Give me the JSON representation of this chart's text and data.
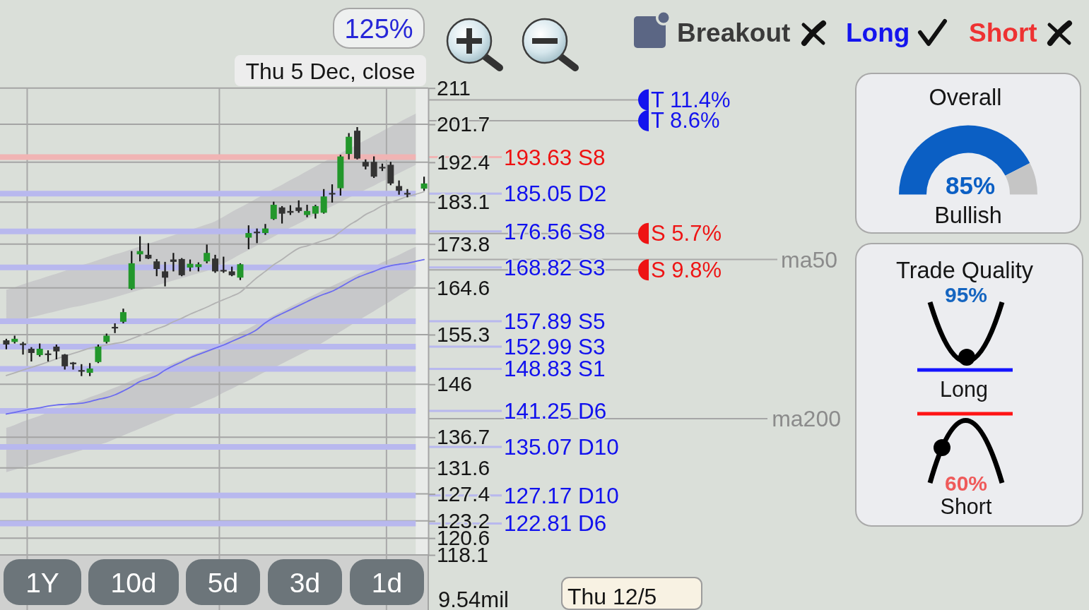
{
  "chart_data": [
    {
      "type": "candlestick",
      "categories": [
        null,
        null,
        null,
        null,
        null,
        null,
        null,
        null,
        null,
        null,
        null,
        null,
        null,
        null,
        null,
        null,
        null,
        null,
        null,
        null,
        null,
        null,
        null,
        null,
        null,
        null,
        null,
        null,
        null,
        null,
        null,
        null,
        null,
        null,
        null,
        null,
        null,
        null,
        null,
        null,
        null,
        null,
        null,
        null,
        null,
        null,
        null,
        null,
        null,
        null,
        null
      ],
      "ohlc": [
        [
          154.2,
          154.5,
          152.5,
          153.4
        ],
        [
          153.9,
          155.1,
          153.6,
          154.5
        ],
        [
          153.6,
          153.9,
          151.5,
          153.3
        ],
        [
          152.6,
          152.9,
          150.2,
          151.8
        ],
        [
          151.4,
          153.6,
          151.1,
          152.6
        ],
        [
          151.7,
          152.3,
          150.2,
          151.5
        ],
        [
          153.0,
          153.4,
          150.6,
          152.1
        ],
        [
          151.5,
          151.6,
          148.7,
          149.3
        ],
        [
          150.0,
          150.1,
          148.7,
          149.7
        ],
        [
          148.6,
          149.7,
          147.5,
          148.4
        ],
        [
          148.1,
          149.9,
          147.5,
          148.9
        ],
        [
          150.1,
          153.4,
          149.9,
          153.0
        ],
        [
          153.9,
          155.5,
          153.6,
          155.1
        ],
        [
          156.8,
          157.5,
          155.6,
          156.5
        ],
        [
          157.8,
          160.4,
          157.5,
          159.7
        ],
        [
          164.4,
          172.3,
          164.2,
          169.7
        ],
        [
          171.6,
          175.5,
          170.1,
          172.3
        ],
        [
          171.5,
          174.0,
          170.6,
          170.7
        ],
        [
          170.1,
          170.6,
          167.0,
          168.5
        ],
        [
          168.0,
          170.0,
          164.9,
          166.7
        ],
        [
          170.5,
          171.9,
          168.0,
          170.0
        ],
        [
          170.6,
          170.8,
          167.0,
          167.2
        ],
        [
          168.8,
          170.5,
          168.0,
          169.6
        ],
        [
          168.9,
          169.9,
          168.0,
          169.5
        ],
        [
          170.1,
          173.7,
          169.7,
          171.9
        ],
        [
          170.7,
          171.5,
          167.7,
          168.0
        ],
        [
          168.3,
          171.1,
          167.7,
          168.0
        ],
        [
          168.0,
          169.0,
          167.0,
          167.2
        ],
        [
          166.7,
          169.7,
          166.2,
          169.5
        ],
        [
          175.2,
          177.9,
          172.7,
          176.2
        ],
        [
          176.5,
          177.2,
          174.0,
          176.2
        ],
        [
          176.2,
          178.2,
          175.8,
          177.2
        ],
        [
          179.3,
          183.2,
          179.1,
          182.5
        ],
        [
          181.9,
          182.2,
          178.3,
          180.5
        ],
        [
          181.1,
          182.4,
          180.2,
          180.7
        ],
        [
          181.9,
          183.5,
          180.7,
          181.1
        ],
        [
          180.2,
          182.5,
          179.7,
          181.1
        ],
        [
          180.5,
          182.5,
          179.4,
          182.2
        ],
        [
          180.7,
          186.1,
          180.5,
          184.4
        ],
        [
          185.2,
          187.2,
          183.0,
          184.9
        ],
        [
          186.3,
          194.2,
          184.6,
          193.8
        ],
        [
          194.4,
          199.5,
          193.1,
          198.6
        ],
        [
          200.1,
          201.0,
          193.1,
          193.3
        ],
        [
          192.5,
          193.1,
          190.7,
          191.4
        ],
        [
          192.5,
          193.8,
          188.7,
          189.0
        ],
        [
          191.3,
          192.1,
          190.3,
          191.1
        ],
        [
          191.8,
          192.5,
          187.0,
          187.4
        ],
        [
          186.8,
          188.1,
          184.8,
          185.7
        ],
        [
          185.2,
          186.1,
          184.2,
          184.9
        ],
        null,
        [
          186.2,
          189.0,
          185.7,
          187.4
        ]
      ],
      "colors": [
        "#333333",
        "#22972b",
        "#333333",
        "#333333",
        "#22972b",
        "#333333",
        "#333333",
        "#333333",
        "#333333",
        "#333333",
        "#22972b",
        "#22972b",
        "#22972b",
        "#333333",
        "#22972b",
        "#22972b",
        "#22972b",
        "#333333",
        "#333333",
        "#333333",
        "#333333",
        "#333333",
        "#22972b",
        "#22972b",
        "#22972b",
        "#333333",
        "#333333",
        "#333333",
        "#22972b",
        "#22972b",
        "#333333",
        "#22972b",
        "#22972b",
        "#333333",
        "#333333",
        "#333333",
        "#22972b",
        "#22972b",
        "#22972b",
        "#333333",
        "#22972b",
        "#22972b",
        "#333333",
        "#333333",
        "#333333",
        "#333333",
        "#333333",
        "#333333",
        "#333333",
        null,
        "#22972b"
      ],
      "ylim": [
        118.1,
        211
      ],
      "log": true,
      "yticks": [
        211,
        201.7,
        192.4,
        183.1,
        173.8,
        164.6,
        155.3,
        146,
        136.7,
        131.6,
        127.4,
        123.2,
        120.6,
        118.1
      ],
      "grid": "y",
      "series": [
        {
          "type": "line",
          "color": "#c9cacb",
          "values": [
            null,
            null,
            null,
            null,
            null,
            null,
            null,
            null,
            null,
            null,
            null,
            null,
            null,
            null,
            null,
            null,
            null,
            null,
            null,
            null,
            null,
            null,
            null,
            null,
            null,
            null,
            null,
            null,
            null,
            null,
            null,
            null,
            null,
            null,
            null,
            null,
            null,
            null,
            null,
            null,
            null,
            null,
            null,
            null,
            null,
            null,
            null,
            null,
            null,
            null,
            null
          ],
          "lower": [
            157.6,
            158.0,
            158.3,
            158.7,
            159.1,
            159.5,
            159.9,
            160.3,
            160.7,
            161.0,
            161.4,
            161.8,
            162.2,
            162.7,
            163.2,
            163.7,
            164.2,
            164.6,
            165.1,
            165.6,
            166.1,
            166.6,
            167.1,
            167.6,
            168.1,
            168.8,
            169.7,
            170.6,
            171.6,
            172.5,
            173.5,
            174.4,
            175.4,
            176.4,
            177.4,
            178.3,
            179.3,
            180.3,
            181.3,
            182.2,
            183.1,
            184.1,
            185.0,
            186.0,
            186.9,
            187.9,
            188.8,
            189.8,
            190.8,
            191.8,
            null
          ],
          "upper": [
            164.2,
            164.7,
            165.3,
            165.9,
            166.4,
            167.0,
            167.5,
            168.1,
            168.7,
            169.3,
            169.8,
            170.4,
            171.0,
            171.6,
            172.1,
            172.7,
            173.3,
            173.9,
            174.5,
            175.1,
            175.7,
            176.3,
            176.9,
            177.5,
            178.1,
            178.8,
            179.8,
            180.9,
            181.9,
            182.9,
            184.0,
            185.0,
            186.1,
            187.1,
            188.2,
            189.2,
            190.3,
            191.4,
            192.5,
            193.5,
            194.6,
            195.7,
            196.7,
            197.8,
            198.9,
            200.0,
            201.1,
            202.2,
            203.3,
            204.4,
            null
          ]
        },
        {
          "type": "line",
          "color": "#c7c8ca",
          "values": [
            null,
            null,
            null,
            null,
            null,
            null,
            null,
            null,
            null,
            null,
            null,
            null,
            null,
            null,
            null,
            null,
            null,
            null,
            null,
            null,
            null,
            null,
            null,
            null,
            null,
            null,
            null,
            null,
            null,
            null,
            null,
            null,
            null,
            null,
            null,
            null,
            null,
            null,
            null,
            null,
            null,
            null,
            null,
            null,
            null,
            null,
            null,
            null,
            null,
            null,
            null
          ],
          "lower": [
            130.9,
            131.3,
            131.7,
            132.1,
            132.5,
            132.9,
            133.3,
            133.7,
            134.1,
            134.5,
            135.0,
            135.4,
            135.8,
            136.4,
            137.0,
            137.6,
            138.2,
            138.8,
            139.4,
            140.0,
            140.6,
            141.2,
            141.8,
            142.4,
            143.1,
            143.7,
            144.5,
            145.2,
            146.0,
            146.7,
            147.5,
            148.3,
            149.0,
            149.8,
            150.6,
            151.4,
            152.2,
            153.0,
            153.9,
            154.9,
            155.9,
            156.9,
            157.9,
            158.9,
            159.9,
            160.9,
            161.9,
            163.0,
            164.0,
            165.1,
            null
          ],
          "upper": [
            138.3,
            138.8,
            139.4,
            139.9,
            140.4,
            141.0,
            141.5,
            142.0,
            142.6,
            143.1,
            143.7,
            144.2,
            144.8,
            145.4,
            146.0,
            146.7,
            147.3,
            147.9,
            148.6,
            149.2,
            149.9,
            150.5,
            151.2,
            151.9,
            152.5,
            153.2,
            154.1,
            154.9,
            155.7,
            156.5,
            157.4,
            158.2,
            159.1,
            159.9,
            160.8,
            161.6,
            162.5,
            163.3,
            164.2,
            165.0,
            165.8,
            166.6,
            167.4,
            168.2,
            169.0,
            169.9,
            170.7,
            171.5,
            172.4,
            173.2,
            null
          ]
        },
        {
          "name": "ma50",
          "type": "line",
          "color": "#6b6bf0",
          "values": [
            140.7,
            141.0,
            141.3,
            141.6,
            141.8,
            142.1,
            142.3,
            142.4,
            142.5,
            142.6,
            142.9,
            143.3,
            143.6,
            144.1,
            144.8,
            145.6,
            146.5,
            147.0,
            147.6,
            148.6,
            149.4,
            150.1,
            150.9,
            151.5,
            152.1,
            152.7,
            153.3,
            154.0,
            154.7,
            155.4,
            156.3,
            157.6,
            158.6,
            159.4,
            160.2,
            161.0,
            161.8,
            162.6,
            163.3,
            163.9,
            164.8,
            165.8,
            166.7,
            167.4,
            168.0,
            168.7,
            169.2,
            169.5,
            169.7,
            170.1,
            170.5
          ]
        },
        {
          "type": "line",
          "color": "#b2b2b2",
          "values": [
            147.6,
            148.1,
            148.6,
            149.1,
            149.6,
            150.1,
            150.7,
            151.2,
            151.7,
            152.2,
            152.7,
            153.0,
            153.3,
            153.6,
            153.9,
            154.5,
            155.1,
            155.7,
            156.4,
            157.0,
            157.8,
            158.5,
            159.3,
            160.0,
            160.7,
            161.5,
            162.2,
            162.9,
            163.7,
            165.2,
            166.7,
            168.0,
            169.4,
            170.5,
            171.8,
            172.9,
            173.4,
            174.0,
            174.6,
            175.2,
            176.5,
            177.9,
            179.0,
            180.3,
            181.2,
            182.3,
            183.0,
            183.7,
            184.4,
            184.9,
            185.5
          ]
        }
      ],
      "ref_lines": [
        {
          "axis": "y",
          "value": 193.63,
          "label": "193.63 S8",
          "color": "#f0b4b4"
        },
        {
          "axis": "y",
          "value": 185.05,
          "label": "185.05 D2",
          "color": "#b8b8ee"
        },
        {
          "axis": "y",
          "value": 176.56,
          "label": "176.56 S8",
          "color": "#b8b8ee"
        },
        {
          "axis": "y",
          "value": 168.82,
          "label": "168.82 S3",
          "color": "#b8b8ee"
        },
        {
          "axis": "y",
          "value": 157.89,
          "label": "157.89 S5",
          "color": "#b8b8ee"
        },
        {
          "axis": "y",
          "value": 152.99,
          "label": "152.99 S3",
          "color": "#b8b8ee"
        },
        {
          "axis": "y",
          "value": 148.83,
          "label": "148.83 S1",
          "color": "#b8b8ee"
        },
        {
          "axis": "y",
          "value": 141.25,
          "label": "141.25 D6",
          "color": "#b8b8ee"
        },
        {
          "axis": "y",
          "value": 135.07,
          "label": "135.07 D10",
          "color": "#b8b8ee"
        },
        {
          "axis": "y",
          "value": 127.17,
          "label": "127.17 D10",
          "color": "#b8b8ee"
        },
        {
          "axis": "y",
          "value": 122.81,
          "label": "122.81 D6",
          "color": "#b8b8ee"
        },
        {
          "axis": "y",
          "value": 207.9,
          "label": "T 11.4%",
          "color": "#a6a6a6"
        },
        {
          "axis": "y",
          "value": 202.6,
          "label": "T 8.6%",
          "color": "#a6a6a6"
        },
        {
          "axis": "y",
          "value": 176.1,
          "label": "S 5.7%",
          "color": "#a6a6a6"
        },
        {
          "axis": "y",
          "value": 168.3,
          "label": "S 9.8%",
          "color": "#a6a6a6"
        },
        {
          "axis": "y",
          "value": 139.9,
          "label": "ma200",
          "color": "#a6a6a6"
        }
      ],
      "annotations": [
        "125%",
        "Thu 5 Dec, close",
        "Breakout",
        "Long",
        "Short",
        "1Y",
        "10d",
        "5d",
        "3d",
        "1d",
        "Thu 12/5",
        "9.54mil"
      ]
    },
    {
      "type": "donut",
      "title": "Overall",
      "categories": [
        null,
        null
      ],
      "values": [
        85,
        15
      ],
      "colors": [
        "#0b5fc4",
        "#c5c5c5"
      ],
      "value_labels": [
        "85%",
        null
      ],
      "annotations": [
        "Bullish"
      ]
    },
    {
      "type": "other",
      "title": "Trade Quality",
      "annotations": [
        "95%",
        "Long",
        "60%",
        "Short"
      ]
    }
  ]
}
